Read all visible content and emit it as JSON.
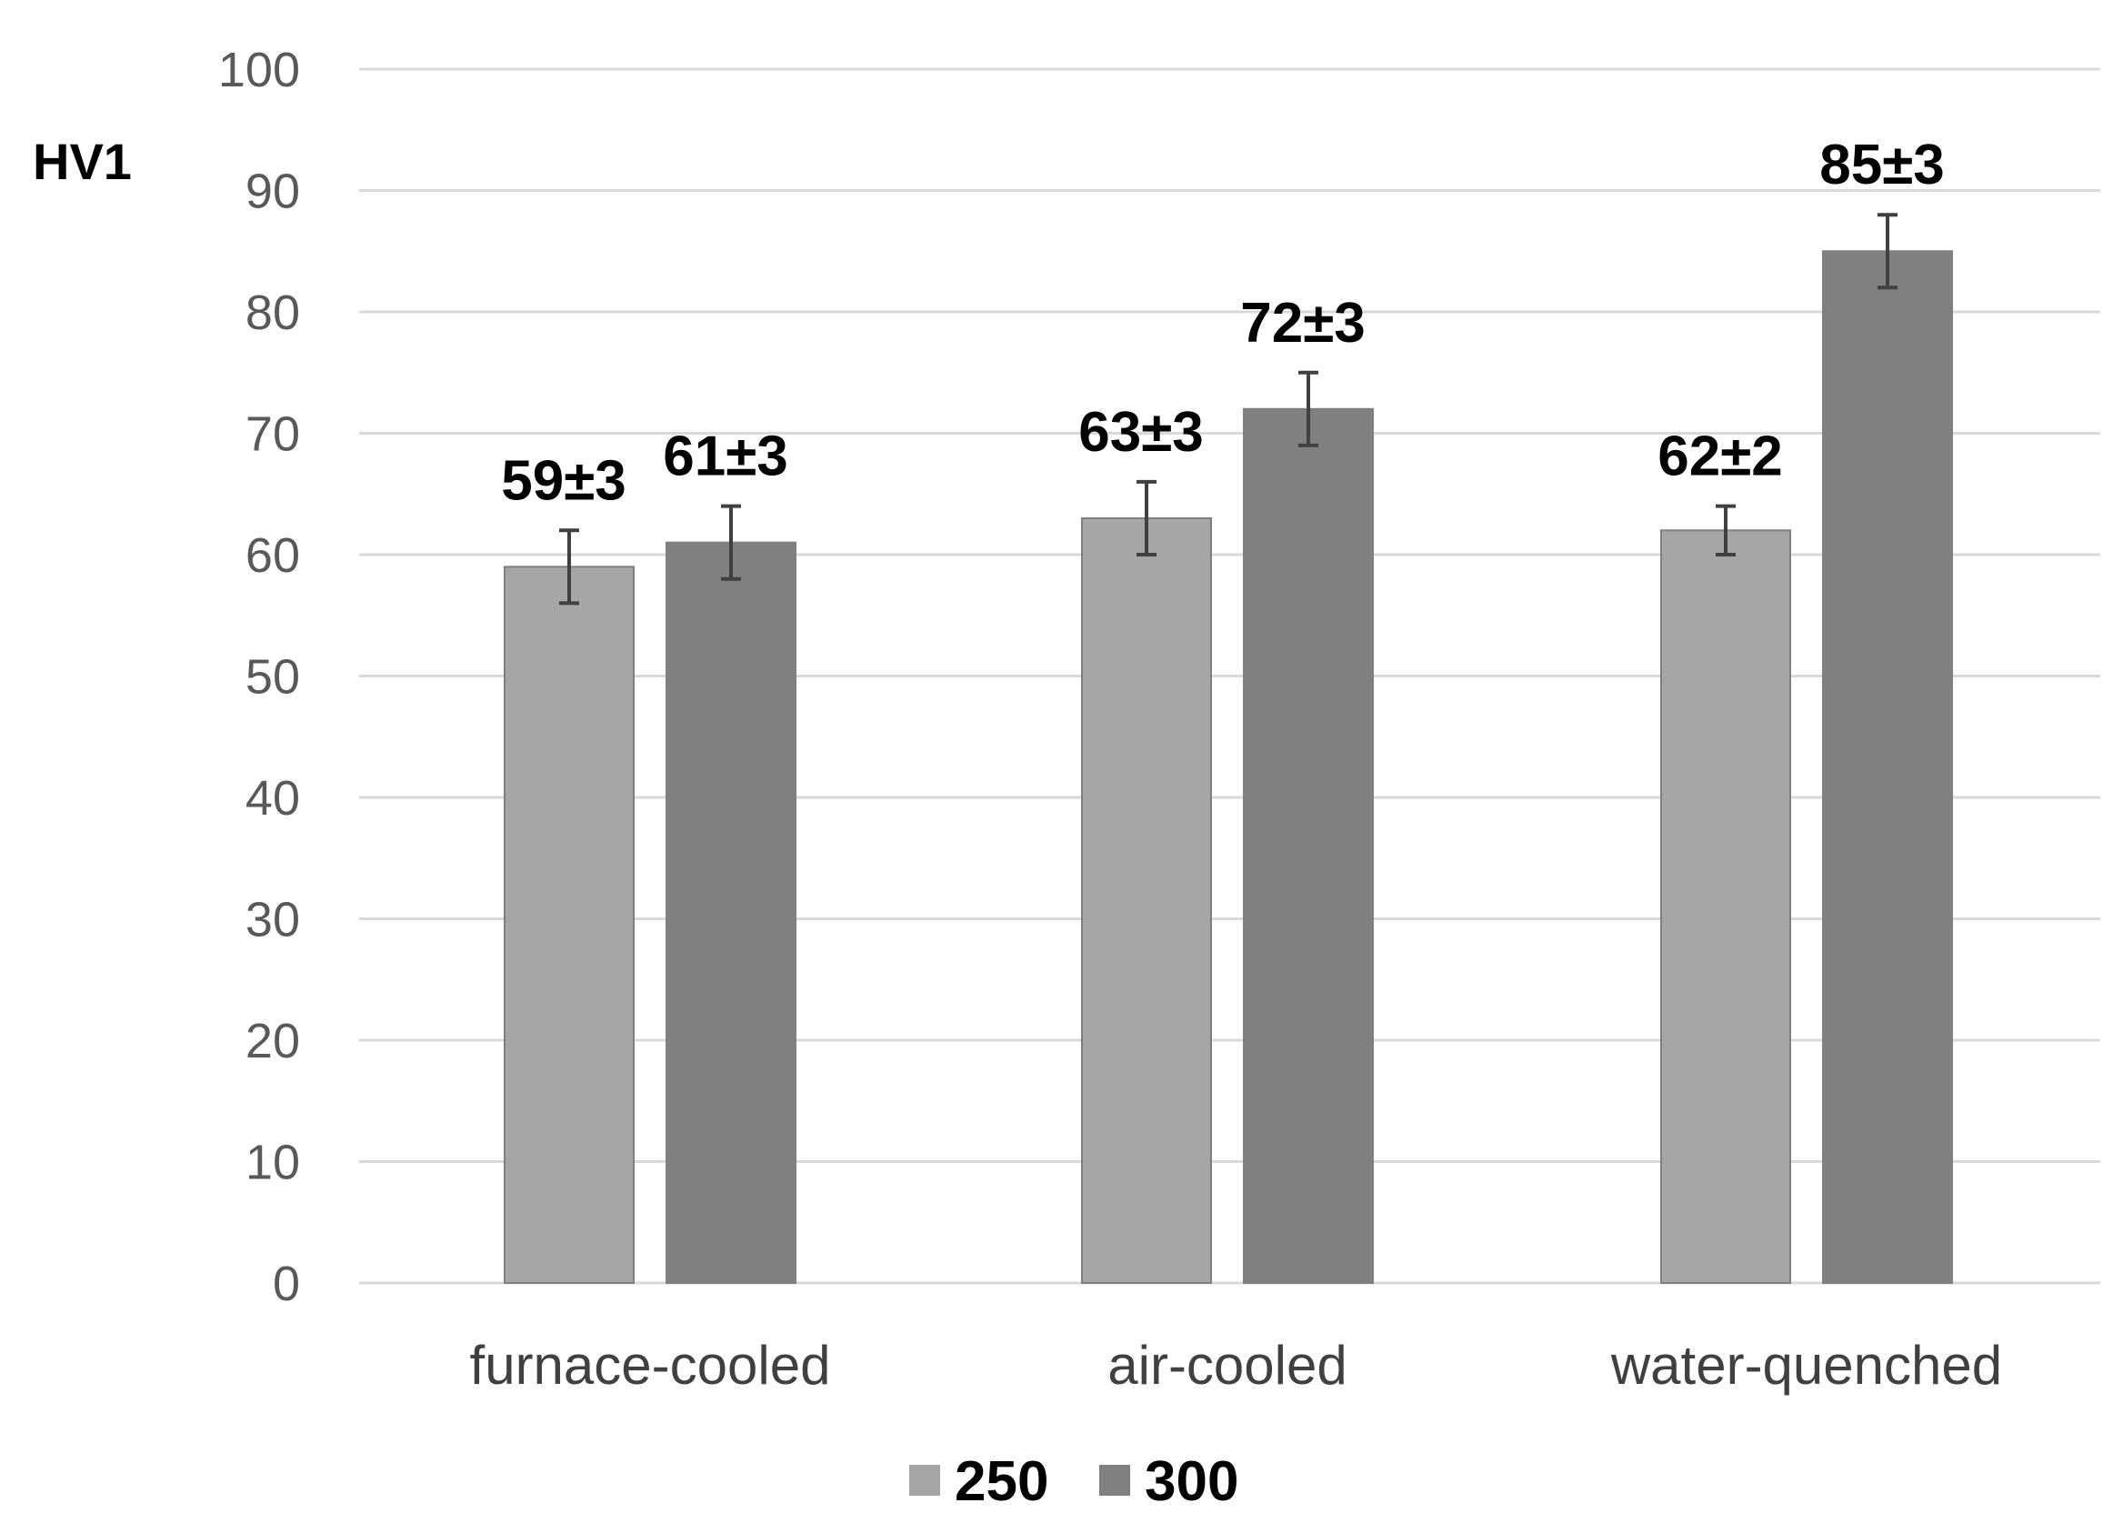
{
  "chart_data": {
    "type": "bar",
    "title": "",
    "xlabel": "",
    "ylabel": "HV1",
    "ylim": [
      0,
      100
    ],
    "ytick_step": 10,
    "grid": true,
    "legend_position": "bottom",
    "categories": [
      "furnace-cooled",
      "air-cooled",
      "water-quenched"
    ],
    "series": [
      {
        "name": "250",
        "color": "#a6a6a6",
        "values": [
          59,
          63,
          62
        ],
        "errors": [
          3,
          3,
          2
        ],
        "labels": [
          "59±3",
          "63±3",
          "62±2"
        ]
      },
      {
        "name": "300",
        "color": "#808080",
        "values": [
          61,
          72,
          85
        ],
        "errors": [
          3,
          3,
          3
        ],
        "labels": [
          "61±3",
          "72±3",
          "85±3"
        ]
      }
    ]
  }
}
